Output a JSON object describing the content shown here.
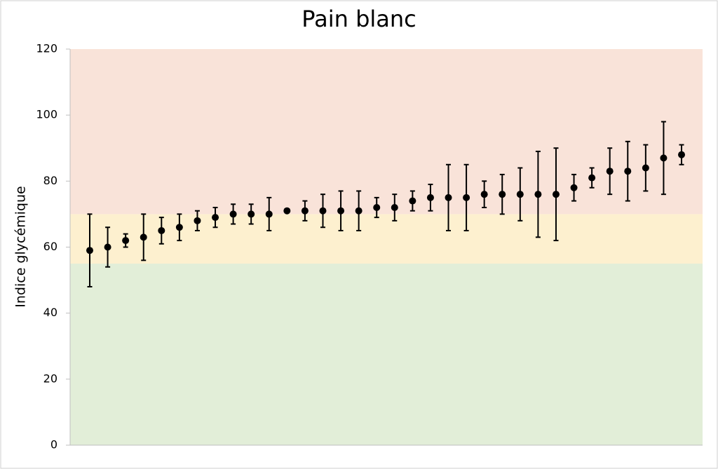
{
  "chart_data": {
    "type": "scatter",
    "title": "Pain blanc",
    "y_label": "Indice glycémique",
    "categories": [
      null,
      null,
      null,
      null,
      null,
      null,
      null,
      null,
      null,
      null,
      null,
      null,
      null,
      null,
      null,
      null,
      null,
      null,
      null,
      null,
      null,
      null,
      null,
      null,
      null,
      null,
      null,
      null,
      null,
      null,
      null,
      null,
      null,
      null
    ],
    "values": [
      59,
      60,
      62,
      63,
      65,
      66,
      68,
      69,
      70,
      70,
      70,
      71,
      71,
      71,
      71,
      71,
      72,
      72,
      74,
      75,
      75,
      75,
      76,
      76,
      76,
      76,
      76,
      78,
      81,
      83,
      83,
      84,
      87,
      88
    ],
    "errors": [
      11,
      6,
      2,
      7,
      4,
      4,
      3,
      3,
      3,
      3,
      5,
      0,
      3,
      5,
      6,
      6,
      3,
      4,
      3,
      4,
      10,
      10,
      4,
      6,
      8,
      13,
      14,
      4,
      3,
      7,
      9,
      7,
      11,
      3
    ],
    "color": "#000000",
    "bands": [
      {
        "from": 0,
        "to": 55,
        "color": "#e2eed8"
      },
      {
        "from": 55,
        "to": 70,
        "color": "#fdf0cf"
      },
      {
        "from": 70,
        "to": 120,
        "color": "#f9e3d9"
      }
    ],
    "ylim": [
      0,
      120
    ],
    "yticks": [
      0,
      20,
      40,
      60,
      80,
      100,
      120
    ],
    "grid": false
  }
}
